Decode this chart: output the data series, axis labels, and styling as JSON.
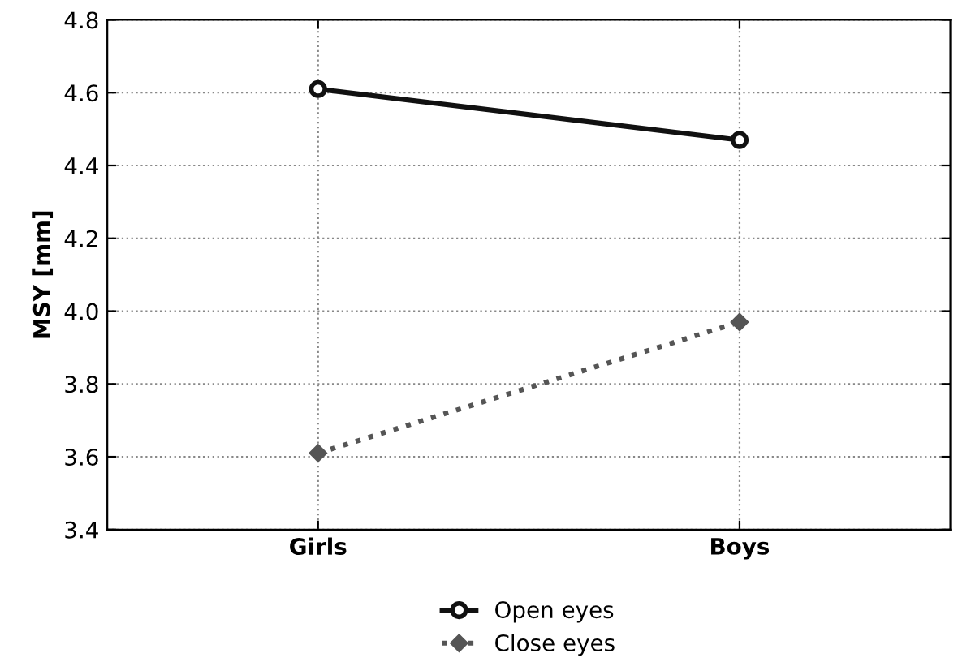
{
  "chart_data": {
    "type": "line",
    "ylabel": "MSY [mm]",
    "categories": [
      "Girls",
      "Boys"
    ],
    "series": [
      {
        "name": "Open eyes",
        "color": "#111111",
        "values": [
          4.61,
          4.47
        ],
        "marker": "circle",
        "line_style": "solid"
      },
      {
        "name": "Close eyes",
        "color": "#555555",
        "values": [
          3.61,
          3.97
        ],
        "marker": "diamond",
        "line_style": "dotted"
      }
    ],
    "ylim": [
      3.4,
      4.8
    ],
    "yticks": [
      3.4,
      3.6,
      3.8,
      {
        "value": 4,
        "label": "4.0"
      },
      4.2,
      4.4,
      4.6,
      4.8
    ],
    "grid": true,
    "legend": "bottom"
  }
}
